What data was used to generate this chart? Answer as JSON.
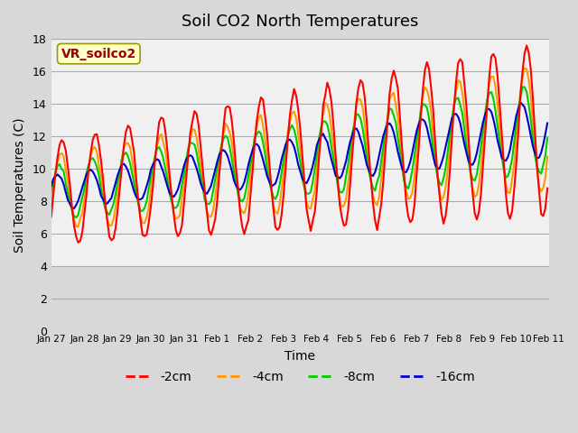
{
  "title": "Soil CO2 North Temperatures",
  "xlabel": "Time",
  "ylabel": "Soil Temperatures (C)",
  "legend_label": "VR_soilco2",
  "series_labels": [
    "-2cm",
    "-4cm",
    "-8cm",
    "-16cm"
  ],
  "series_colors": [
    "#ff0000",
    "#ff9900",
    "#00cc00",
    "#0000cc"
  ],
  "ylim": [
    0,
    18
  ],
  "bg_color": "#d8d8d8",
  "plot_bg_color": "#f0f0f0",
  "tick_labels": [
    "Jan 27",
    "Jan 28",
    "Jan 29",
    "Jan 30",
    "Jan 31",
    "Feb 1",
    "Feb 2",
    "Feb 3",
    "Feb 4",
    "Feb 5",
    "Feb 6",
    "Feb 7",
    "Feb 8",
    "Feb 9",
    "Feb 10",
    "Feb 11"
  ],
  "annotation_box_color": "#ffffcc",
  "annotation_text_color": "#990000",
  "annotation_edge_color": "#999900"
}
